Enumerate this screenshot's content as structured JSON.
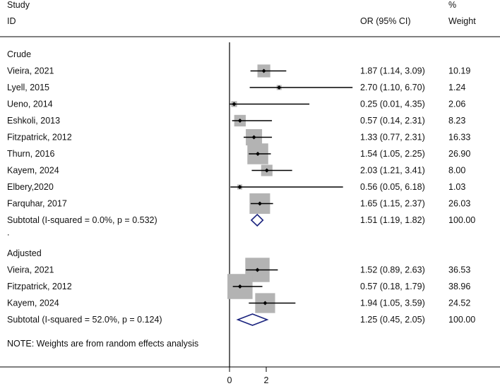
{
  "chart_data": {
    "type": "forest",
    "header": {
      "study_line1": "Study",
      "study_line2": "ID",
      "or_label": "OR (95% CI)",
      "weight_line1": "%",
      "weight_line2": "Weight"
    },
    "groups": [
      {
        "name": "Crude",
        "studies": [
          {
            "id": "Vieira, 2021",
            "or": 1.87,
            "lo": 1.14,
            "hi": 3.09,
            "ci_text": "1.87 (1.14, 3.09)",
            "weight": "10.19"
          },
          {
            "id": "Lyell, 2015",
            "or": 2.7,
            "lo": 1.1,
            "hi": 6.7,
            "ci_text": "2.70 (1.10, 6.70)",
            "weight": "1.24"
          },
          {
            "id": "Ueno, 2014",
            "or": 0.25,
            "lo": 0.01,
            "hi": 4.35,
            "ci_text": "0.25 (0.01, 4.35)",
            "weight": "2.06"
          },
          {
            "id": "Eshkoli, 2013",
            "or": 0.57,
            "lo": 0.14,
            "hi": 2.31,
            "ci_text": "0.57 (0.14, 2.31)",
            "weight": "8.23"
          },
          {
            "id": "Fitzpatrick, 2012",
            "or": 1.33,
            "lo": 0.77,
            "hi": 2.31,
            "ci_text": "1.33 (0.77, 2.31)",
            "weight": "16.33"
          },
          {
            "id": "Thurn, 2016",
            "or": 1.54,
            "lo": 1.05,
            "hi": 2.25,
            "ci_text": "1.54 (1.05, 2.25)",
            "weight": "26.90"
          },
          {
            "id": "Kayem, 2024",
            "or": 2.03,
            "lo": 1.21,
            "hi": 3.41,
            "ci_text": "2.03 (1.21, 3.41)",
            "weight": "8.00"
          },
          {
            "id": "Elbery,2020",
            "or": 0.56,
            "lo": 0.05,
            "hi": 6.18,
            "ci_text": "0.56 (0.05, 6.18)",
            "weight": "1.03"
          },
          {
            "id": "Farquhar, 2017",
            "or": 1.65,
            "lo": 1.15,
            "hi": 2.37,
            "ci_text": "1.65 (1.15, 2.37)",
            "weight": "26.03"
          }
        ],
        "subtotal": {
          "label": "Subtotal  (I-squared = 0.0%, p = 0.532)",
          "or": 1.51,
          "lo": 1.19,
          "hi": 1.82,
          "ci_text": "1.51 (1.19, 1.82)",
          "weight": "100.00"
        }
      },
      {
        "name": "Adjusted",
        "studies": [
          {
            "id": "Vieira, 2021",
            "or": 1.52,
            "lo": 0.89,
            "hi": 2.63,
            "ci_text": "1.52 (0.89, 2.63)",
            "weight": "36.53"
          },
          {
            "id": "Fitzpatrick, 2012",
            "or": 0.57,
            "lo": 0.18,
            "hi": 1.79,
            "ci_text": "0.57 (0.18, 1.79)",
            "weight": "38.96"
          },
          {
            "id": "Kayem, 2024",
            "or": 1.94,
            "lo": 1.05,
            "hi": 3.59,
            "ci_text": "1.94 (1.05, 3.59)",
            "weight": "24.52"
          }
        ],
        "subtotal": {
          "label": "Subtotal  (I-squared = 52.0%, p = 0.124)",
          "or": 1.25,
          "lo": 0.45,
          "hi": 2.05,
          "ci_text": "1.25 (0.45, 2.05)",
          "weight": "100.00"
        }
      }
    ],
    "separator": ".",
    "note": "NOTE: Weights are from random effects analysis",
    "x_ticks": [
      "0",
      "2"
    ],
    "null_line": 0,
    "xlim": [
      0,
      7
    ],
    "colors": {
      "box": "#b3b3b3",
      "ci": "#000000",
      "diamond": "#1a237e",
      "axis": "#000000"
    }
  }
}
